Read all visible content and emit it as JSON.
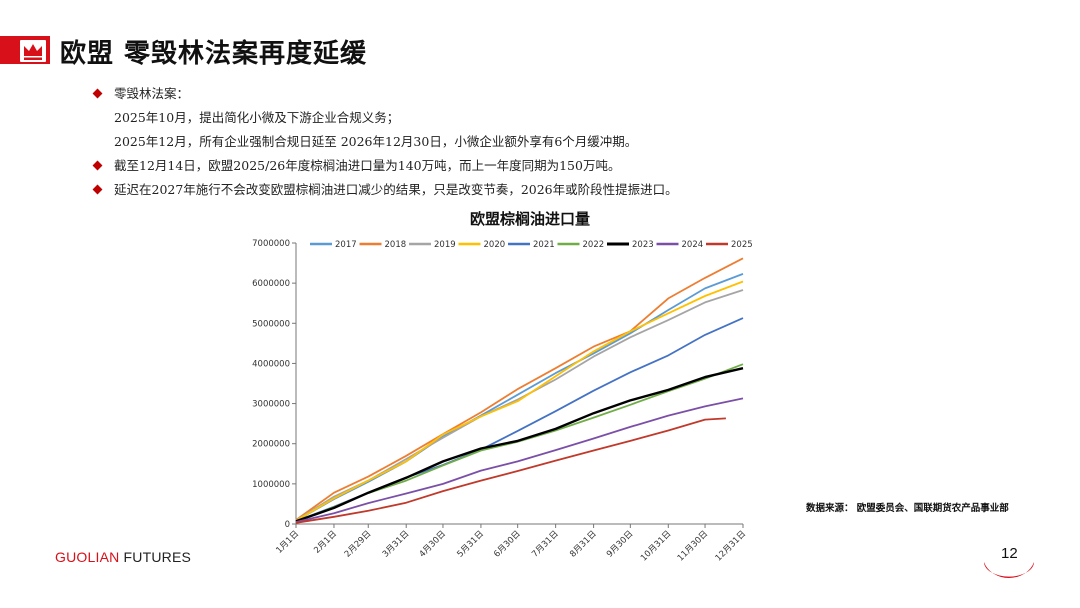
{
  "header": {
    "title": "欧盟  零毁林法案再度延缓",
    "brand_color": "#d8101a"
  },
  "bullets": [
    {
      "type": "bullet",
      "text": "零毁林法案："
    },
    {
      "type": "sub",
      "text": "2025年10月，提出简化小微及下游企业合规义务；"
    },
    {
      "type": "sub",
      "text": "2025年12月，所有企业强制合规日延至  2026年12月30日，小微企业额外享有6个月缓冲期。"
    },
    {
      "type": "bullet",
      "text": "截至12月14日，欧盟2025/26年度棕榈油进口量为140万吨，而上一年度同期为150万吨。"
    },
    {
      "type": "bullet",
      "text": "延迟在2027年施行不会改变欧盟棕榈油进口减少的结果，只是改变节奏，2026年或阶段性提振进口。"
    }
  ],
  "chart_data": {
    "type": "line",
    "title": "欧盟棕榈油进口量",
    "xlabel": "",
    "ylabel": "",
    "ylim": [
      0,
      7000000
    ],
    "y_ticks": [
      0,
      1000000,
      2000000,
      3000000,
      4000000,
      5000000,
      6000000,
      7000000
    ],
    "y_tick_labels": [
      "0",
      "1000000",
      "2000000",
      "3000000",
      "4000000",
      "5000000",
      "6000000",
      "7000000"
    ],
    "x_tick_labels": [
      "1月1日",
      "2月1日",
      "2月29日",
      "3月31日",
      "4月30日",
      "5月31日",
      "6月30日",
      "7月31日",
      "8月31日",
      "9月30日",
      "10月31日",
      "11月30日",
      "12月31日"
    ],
    "x": [
      1,
      32,
      60,
      91,
      121,
      152,
      182,
      213,
      244,
      274,
      305,
      335,
      366
    ],
    "legend_position": "top",
    "grid": false,
    "series": [
      {
        "name": "2017",
        "color": "#5b9bd5",
        "values": [
          80000,
          620000,
          1050000,
          1560000,
          2180000,
          2700000,
          3220000,
          3760000,
          4250000,
          4750000,
          5330000,
          5870000,
          6230000
        ]
      },
      {
        "name": "2018",
        "color": "#ed7d31",
        "values": [
          100000,
          780000,
          1180000,
          1700000,
          2240000,
          2780000,
          3360000,
          3880000,
          4420000,
          4800000,
          5620000,
          6130000,
          6620000
        ]
      },
      {
        "name": "2019",
        "color": "#a5a5a5",
        "values": [
          90000,
          680000,
          1080000,
          1620000,
          2150000,
          2680000,
          3100000,
          3600000,
          4170000,
          4650000,
          5080000,
          5520000,
          5830000
        ]
      },
      {
        "name": "2020",
        "color": "#ffc000",
        "values": [
          80000,
          640000,
          1080000,
          1560000,
          2230000,
          2680000,
          3060000,
          3680000,
          4300000,
          4800000,
          5250000,
          5680000,
          6040000
        ]
      },
      {
        "name": "2021",
        "color": "#4472c4",
        "values": [
          70000,
          430000,
          780000,
          1160000,
          1470000,
          1850000,
          2320000,
          2810000,
          3320000,
          3780000,
          4200000,
          4710000,
          5130000
        ]
      },
      {
        "name": "2022",
        "color": "#70ad47",
        "values": [
          60000,
          420000,
          770000,
          1080000,
          1460000,
          1830000,
          2050000,
          2330000,
          2650000,
          2970000,
          3310000,
          3620000,
          3980000
        ]
      },
      {
        "name": "2023",
        "color": "#000000",
        "values": [
          70000,
          400000,
          780000,
          1150000,
          1560000,
          1880000,
          2070000,
          2370000,
          2760000,
          3080000,
          3340000,
          3660000,
          3880000
        ]
      },
      {
        "name": "2024",
        "color": "#7b4fa8",
        "values": [
          50000,
          270000,
          520000,
          760000,
          1000000,
          1330000,
          1560000,
          1840000,
          2130000,
          2420000,
          2700000,
          2930000,
          3130000
        ]
      },
      {
        "name": "2025",
        "color": "#c0392b",
        "values": [
          30000,
          180000,
          330000,
          530000,
          820000,
          1080000,
          1320000,
          1580000,
          1830000,
          2070000,
          2330000,
          2600000,
          null
        ]
      }
    ],
    "series_2025_last": {
      "x": 352,
      "value": 2630000
    }
  },
  "source": "数据来源：  欧盟委员会、国联期货农产品事业部",
  "footer": {
    "logo_prefix": "GUOLIAN",
    "logo_suffix": " FUTURES",
    "page_number": "12"
  }
}
